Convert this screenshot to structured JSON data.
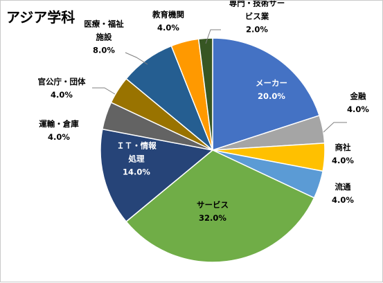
{
  "chart_data": {
    "type": "pie",
    "title": "アジア学科",
    "slices": [
      {
        "label": "メーカー",
        "label_lines": [
          "メーカー"
        ],
        "value_label": "20.0%",
        "value": 20.0,
        "color": "#4472C4",
        "text_color": "#ffffff"
      },
      {
        "label": "金融",
        "label_lines": [
          "金融"
        ],
        "value_label": "4.0%",
        "value": 4.0,
        "color": "#A5A5A5",
        "text_color": "#000000"
      },
      {
        "label": "商社",
        "label_lines": [
          "商社"
        ],
        "value_label": "4.0%",
        "value": 4.0,
        "color": "#FFC000",
        "text_color": "#000000"
      },
      {
        "label": "流通",
        "label_lines": [
          "流通"
        ],
        "value_label": "4.0%",
        "value": 4.0,
        "color": "#5B9BD5",
        "text_color": "#000000"
      },
      {
        "label": "サービス",
        "label_lines": [
          "サービス"
        ],
        "value_label": "32.0%",
        "value": 32.0,
        "color": "#70AD47",
        "text_color": "#000000"
      },
      {
        "label": "ＩＴ・情報処理",
        "label_lines": [
          "ＩＴ・情報",
          "処理"
        ],
        "value_label": "14.0%",
        "value": 14.0,
        "color": "#264478",
        "text_color": "#ffffff"
      },
      {
        "label": "運輸・倉庫",
        "label_lines": [
          "運輸・倉庫"
        ],
        "value_label": "4.0%",
        "value": 4.0,
        "color": "#636363",
        "text_color": "#000000"
      },
      {
        "label": "官公庁・団体",
        "label_lines": [
          "官公庁・団体"
        ],
        "value_label": "4.0%",
        "value": 4.0,
        "color": "#997300",
        "text_color": "#000000"
      },
      {
        "label": "医療・福祉施設",
        "label_lines": [
          "医療・福祉",
          "施設"
        ],
        "value_label": "8.0%",
        "value": 8.0,
        "color": "#255E91",
        "text_color": "#000000"
      },
      {
        "label": "教育機関",
        "label_lines": [
          "教育機関"
        ],
        "value_label": "4.0%",
        "value": 4.0,
        "color": "#FF9900",
        "text_color": "#000000"
      },
      {
        "label": "専門・技術サービス業",
        "label_lines": [
          "専門・技術サー",
          "ビス業"
        ],
        "value_label": "2.0%",
        "value": 2.0,
        "color": "#375623",
        "text_color": "#000000"
      }
    ]
  }
}
